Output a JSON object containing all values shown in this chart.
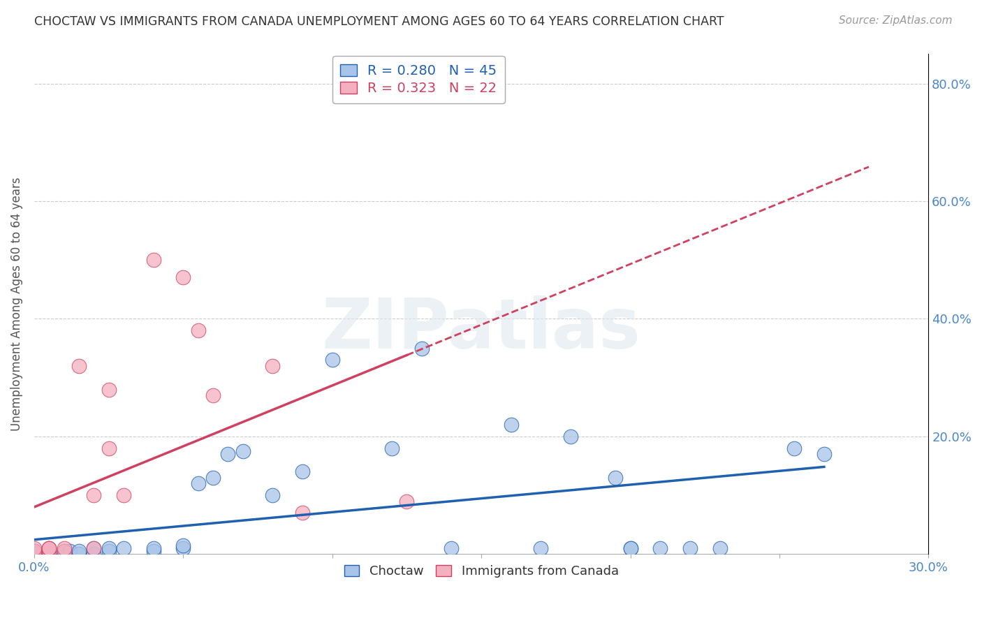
{
  "title": "CHOCTAW VS IMMIGRANTS FROM CANADA UNEMPLOYMENT AMONG AGES 60 TO 64 YEARS CORRELATION CHART",
  "source": "Source: ZipAtlas.com",
  "ylabel": "Unemployment Among Ages 60 to 64 years",
  "xlim": [
    0.0,
    0.3
  ],
  "ylim": [
    0.0,
    0.85
  ],
  "x_ticks": [
    0.0,
    0.05,
    0.1,
    0.15,
    0.2,
    0.25,
    0.3
  ],
  "x_tick_labels": [
    "0.0%",
    "",
    "",
    "",
    "",
    "",
    "30.0%"
  ],
  "y_ticks": [
    0.0,
    0.2,
    0.4,
    0.6,
    0.8
  ],
  "y_tick_labels": [
    "",
    "20.0%",
    "40.0%",
    "60.0%",
    "80.0%"
  ],
  "choctaw_R": "0.280",
  "choctaw_N": "45",
  "canada_R": "0.323",
  "canada_N": "22",
  "choctaw_color": "#a8c4e8",
  "canada_color": "#f4afc0",
  "choctaw_line_color": "#2060b0",
  "canada_line_color": "#d04060",
  "watermark_text": "ZIPatlas",
  "choctaw_x": [
    0.0,
    0.0,
    0.0,
    0.0,
    0.0,
    0.0,
    0.0,
    0.0,
    0.005,
    0.005,
    0.01,
    0.01,
    0.012,
    0.015,
    0.015,
    0.02,
    0.02,
    0.025,
    0.025,
    0.03,
    0.04,
    0.04,
    0.05,
    0.05,
    0.055,
    0.06,
    0.065,
    0.07,
    0.08,
    0.09,
    0.1,
    0.12,
    0.13,
    0.14,
    0.16,
    0.17,
    0.18,
    0.195,
    0.2,
    0.2,
    0.21,
    0.22,
    0.23,
    0.255,
    0.265
  ],
  "choctaw_y": [
    0.0,
    0.0,
    0.0,
    0.0,
    0.0,
    0.0,
    0.005,
    0.005,
    0.0,
    0.005,
    0.0,
    0.005,
    0.005,
    0.0,
    0.005,
    0.0,
    0.01,
    0.005,
    0.01,
    0.01,
    0.005,
    0.01,
    0.01,
    0.015,
    0.12,
    0.13,
    0.17,
    0.175,
    0.1,
    0.14,
    0.33,
    0.18,
    0.35,
    0.01,
    0.22,
    0.01,
    0.2,
    0.13,
    0.01,
    0.01,
    0.01,
    0.01,
    0.01,
    0.18,
    0.17
  ],
  "canada_x": [
    0.0,
    0.0,
    0.0,
    0.005,
    0.005,
    0.005,
    0.005,
    0.01,
    0.01,
    0.015,
    0.02,
    0.02,
    0.025,
    0.025,
    0.03,
    0.04,
    0.05,
    0.055,
    0.06,
    0.08,
    0.09,
    0.125
  ],
  "canada_y": [
    0.0,
    0.005,
    0.01,
    0.005,
    0.01,
    0.01,
    0.01,
    0.005,
    0.01,
    0.32,
    0.1,
    0.01,
    0.28,
    0.18,
    0.1,
    0.5,
    0.47,
    0.38,
    0.27,
    0.32,
    0.07,
    0.09
  ],
  "canada_line_x_end": 0.28
}
